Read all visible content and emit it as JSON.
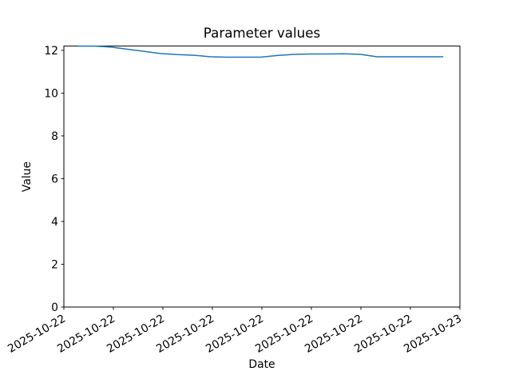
{
  "chart_data": {
    "type": "line",
    "title": "Parameter values",
    "xlabel": "Date",
    "ylabel": "Value",
    "x_tick_labels": [
      "2025-10-22",
      "2025-10-22",
      "2025-10-22",
      "2025-10-22",
      "2025-10-22",
      "2025-10-22",
      "2025-10-22",
      "2025-10-22",
      "2025-10-23"
    ],
    "y_tick_values": [
      0,
      2,
      4,
      6,
      8,
      10,
      12
    ],
    "ylim": [
      0,
      12.2
    ],
    "grid": false,
    "legend_position": "none",
    "line_color": "#1f77b4",
    "axis_color": "#000000",
    "background_color": "#ffffff",
    "x_tick_rotation_deg": 30,
    "series": [
      {
        "name": "Parameter values",
        "x_fraction": [
          0.035,
          0.077,
          0.119,
          0.161,
          0.203,
          0.245,
          0.287,
          0.329,
          0.371,
          0.413,
          0.455,
          0.497,
          0.539,
          0.581,
          0.623,
          0.665,
          0.707,
          0.749,
          0.791,
          0.833,
          0.875,
          0.917,
          0.958
        ],
        "values": [
          12.2,
          12.2,
          12.15,
          12.05,
          11.95,
          11.85,
          11.8,
          11.77,
          11.7,
          11.68,
          11.68,
          11.68,
          11.76,
          11.81,
          11.83,
          11.83,
          11.84,
          11.81,
          11.7,
          11.7,
          11.7,
          11.7,
          11.7
        ]
      }
    ]
  }
}
